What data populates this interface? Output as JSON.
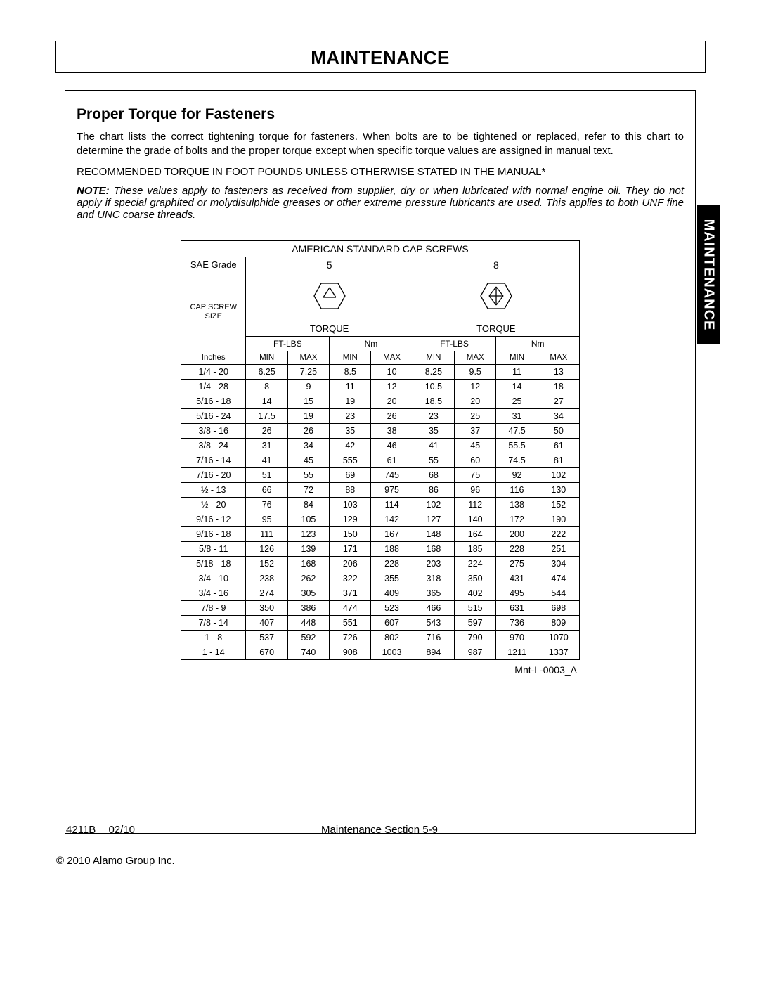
{
  "page": {
    "title": "MAINTENANCE",
    "subtitle": "Proper Torque for Fasteners",
    "paragraph": "The chart lists the correct tightening torque for fasteners. When bolts are to be tightened or replaced, refer to this chart to determine the grade of bolts and the proper torque except when specific torque values are assigned in manual text.",
    "recommended": "RECOMMENDED TORQUE IN FOOT POUNDS UNLESS OTHERWISE STATED IN THE MANUAL*",
    "note_label": "NOTE:",
    "note_body": " These values apply to fasteners as received from supplier, dry or when lubricated with normal engine oil. They do not apply if special graphited or molydisulphide greases or other extreme pressure lubricants are used. This applies to both UNF fine and UNC coarse threads.",
    "side_tab": "MAINTENANCE",
    "table_code": "Mnt-L-0003_A",
    "footer_docnum": "4211B",
    "footer_date": "02/10",
    "footer_section": "Maintenance Section 5-9",
    "copyright": "© 2010 Alamo Group Inc."
  },
  "table": {
    "title": "AMERICAN STANDARD CAP SCREWS",
    "sae_label": "SAE Grade",
    "grades": [
      "5",
      "8"
    ],
    "capscrew_label_l1": "CAP SCREW",
    "capscrew_label_l2": "SIZE",
    "torque_label": "TORQUE",
    "unit_labels": [
      "FT-LBS",
      "Nm",
      "FT-LBS",
      "Nm"
    ],
    "minmax": [
      "MIN",
      "MAX"
    ],
    "inches_label": "Inches",
    "icons": {
      "grade5_svg": "<svg width='46' height='40' viewBox='0 0 46 40'><polygon points='11,2 35,2 45,20 35,38 11,38 1,20' fill='none' stroke='#000' stroke-width='1.3'/><line x1='23' y1='8' x2='14' y2='22' stroke='#000' stroke-width='1.3'/><line x1='23' y1='8' x2='32' y2='22' stroke='#000' stroke-width='1.3'/><line x1='14' y1='22' x2='32' y2='22' stroke='#000' stroke-width='1.3'/></svg>",
      "grade8_svg": "<svg width='46' height='40' viewBox='0 0 46 40'><polygon points='11,2 35,2 45,20 35,38 11,38 1,20' fill='none' stroke='#000' stroke-width='1.3'/><line x1='23' y1='7' x2='13' y2='20' stroke='#000' stroke-width='1.3'/><line x1='23' y1='7' x2='33' y2='20' stroke='#000' stroke-width='1.3'/><line x1='13' y1='20' x2='23' y2='33' stroke='#000' stroke-width='1.3'/><line x1='33' y1='20' x2='23' y2='33' stroke='#000' stroke-width='1.3'/><line x1='13' y1='20' x2='33' y2='20' stroke='#000' stroke-width='1.3'/><line x1='23' y1='7' x2='23' y2='33' stroke='#000' stroke-width='1.3'/></svg>"
    },
    "rows": [
      {
        "size": "1/4 - 20",
        "v": [
          "6.25",
          "7.25",
          "8.5",
          "10",
          "8.25",
          "9.5",
          "11",
          "13"
        ]
      },
      {
        "size": "1/4 - 28",
        "v": [
          "8",
          "9",
          "11",
          "12",
          "10.5",
          "12",
          "14",
          "18"
        ]
      },
      {
        "size": "5/16 - 18",
        "v": [
          "14",
          "15",
          "19",
          "20",
          "18.5",
          "20",
          "25",
          "27"
        ]
      },
      {
        "size": "5/16 - 24",
        "v": [
          "17.5",
          "19",
          "23",
          "26",
          "23",
          "25",
          "31",
          "34"
        ]
      },
      {
        "size": "3/8 - 16",
        "v": [
          "26",
          "26",
          "35",
          "38",
          "35",
          "37",
          "47.5",
          "50"
        ]
      },
      {
        "size": "3/8 - 24",
        "v": [
          "31",
          "34",
          "42",
          "46",
          "41",
          "45",
          "55.5",
          "61"
        ]
      },
      {
        "size": "7/16 - 14",
        "v": [
          "41",
          "45",
          "555",
          "61",
          "55",
          "60",
          "74.5",
          "81"
        ]
      },
      {
        "size": "7/16 - 20",
        "v": [
          "51",
          "55",
          "69",
          "745",
          "68",
          "75",
          "92",
          "102"
        ]
      },
      {
        "size": "½ - 13",
        "v": [
          "66",
          "72",
          "88",
          "975",
          "86",
          "96",
          "116",
          "130"
        ]
      },
      {
        "size": "½ - 20",
        "v": [
          "76",
          "84",
          "103",
          "114",
          "102",
          "112",
          "138",
          "152"
        ]
      },
      {
        "size": "9/16 - 12",
        "v": [
          "95",
          "105",
          "129",
          "142",
          "127",
          "140",
          "172",
          "190"
        ]
      },
      {
        "size": "9/16 - 18",
        "v": [
          "111",
          "123",
          "150",
          "167",
          "148",
          "164",
          "200",
          "222"
        ]
      },
      {
        "size": "5/8 - 11",
        "v": [
          "126",
          "139",
          "171",
          "188",
          "168",
          "185",
          "228",
          "251"
        ]
      },
      {
        "size": "5/18 - 18",
        "v": [
          "152",
          "168",
          "206",
          "228",
          "203",
          "224",
          "275",
          "304"
        ]
      },
      {
        "size": "3/4 - 10",
        "v": [
          "238",
          "262",
          "322",
          "355",
          "318",
          "350",
          "431",
          "474"
        ]
      },
      {
        "size": "3/4 - 16",
        "v": [
          "274",
          "305",
          "371",
          "409",
          "365",
          "402",
          "495",
          "544"
        ]
      },
      {
        "size": "7/8 - 9",
        "v": [
          "350",
          "386",
          "474",
          "523",
          "466",
          "515",
          "631",
          "698"
        ]
      },
      {
        "size": "7/8 - 14",
        "v": [
          "407",
          "448",
          "551",
          "607",
          "543",
          "597",
          "736",
          "809"
        ]
      },
      {
        "size": "1 - 8",
        "v": [
          "537",
          "592",
          "726",
          "802",
          "716",
          "790",
          "970",
          "1070"
        ]
      },
      {
        "size": "1 - 14",
        "v": [
          "670",
          "740",
          "908",
          "1003",
          "894",
          "987",
          "1211",
          "1337"
        ]
      }
    ]
  },
  "style": {
    "text_color": "#000000",
    "background_color": "#ffffff",
    "border_color": "#000000",
    "side_tab_bg": "#000000",
    "side_tab_fg": "#ffffff",
    "title_fontsize": 26,
    "subtitle_fontsize": 21,
    "body_fontsize": 15,
    "table_fontsize": 12.5
  }
}
